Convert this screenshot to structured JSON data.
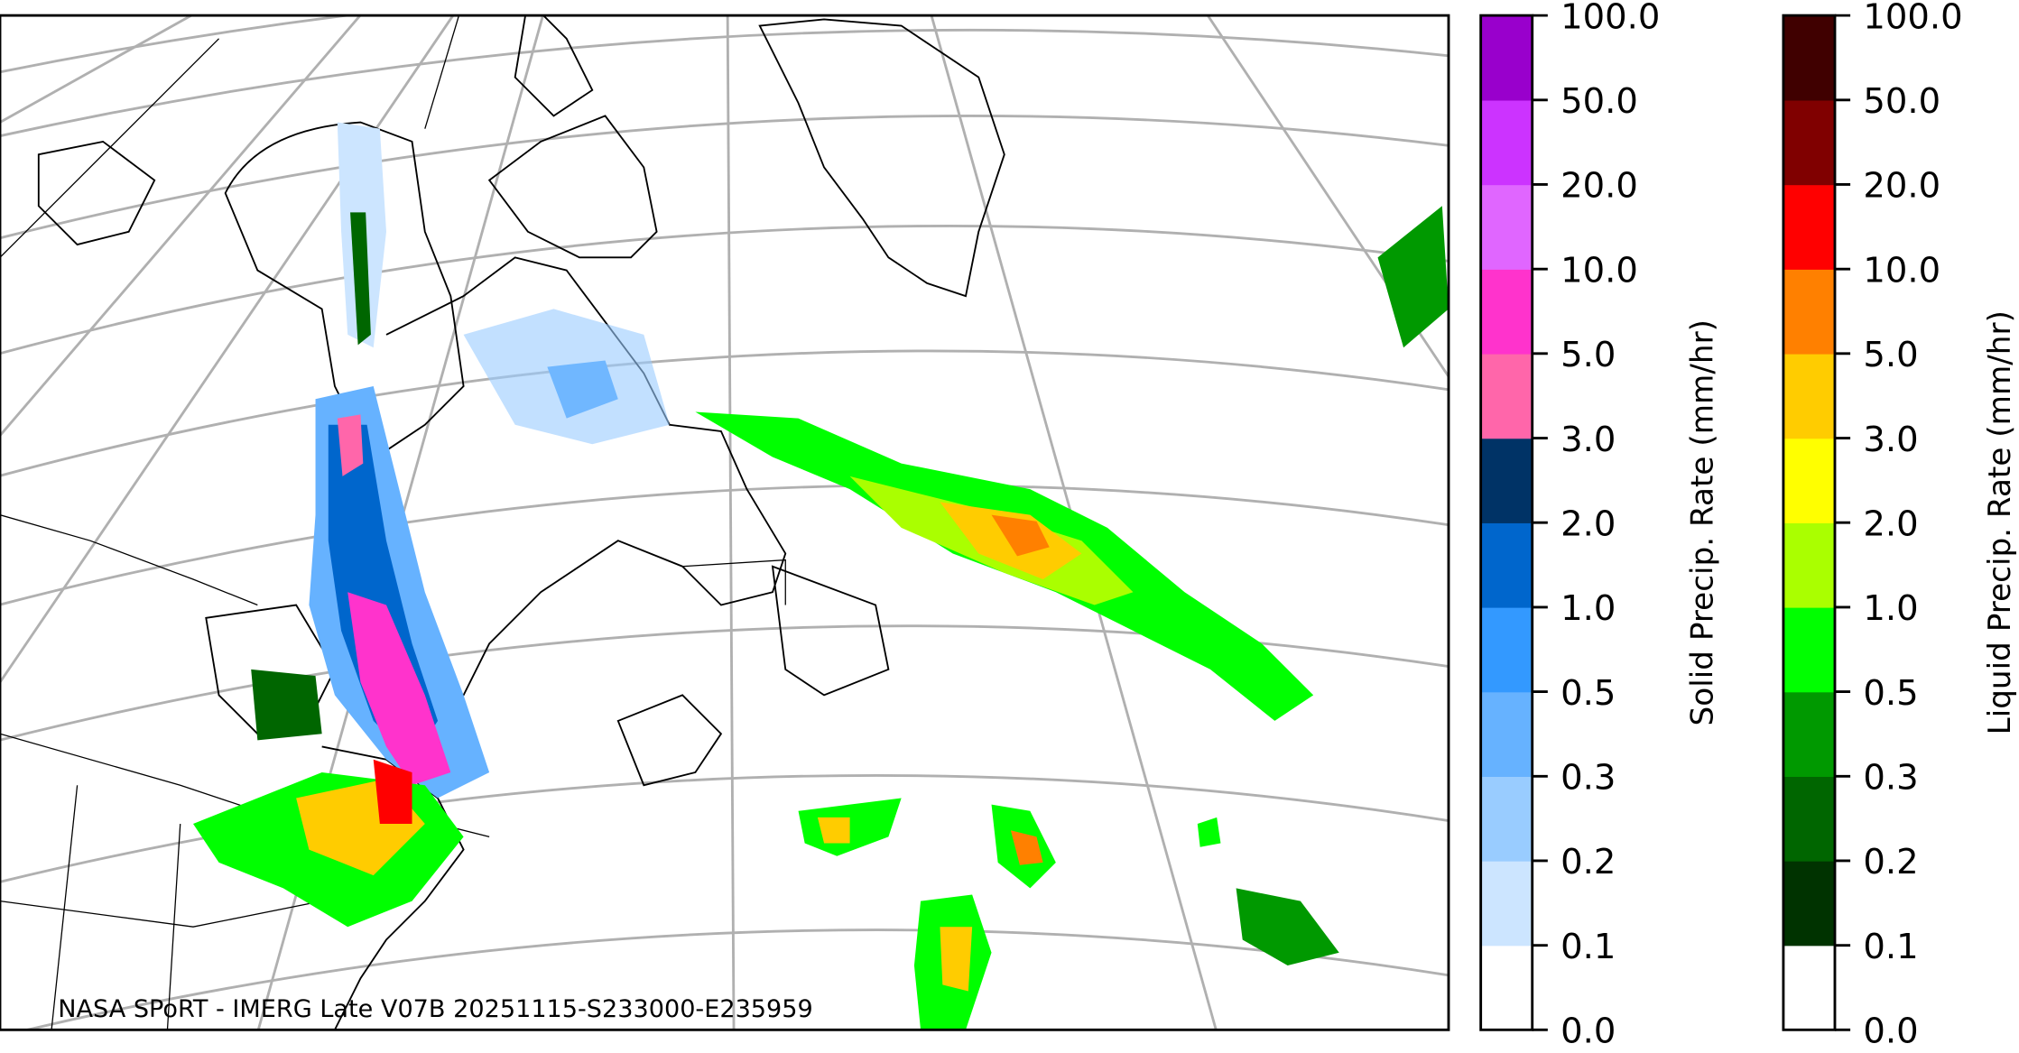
{
  "map": {
    "caption": "NASA SPoRT - IMERG Late V07B 20251115-S233000-E235959",
    "region": "Northeastern North America / North Atlantic",
    "colors": {
      "graticule": "#b0b0b0",
      "coastline": "#000000"
    }
  },
  "legends": [
    {
      "label": "Solid Precip. Rate (mm/hr)",
      "ticks": [
        "0.0",
        "0.1",
        "0.2",
        "0.3",
        "0.5",
        "1.0",
        "2.0",
        "3.0",
        "5.0",
        "10.0",
        "20.0",
        "50.0",
        "100.0"
      ],
      "colors": [
        "#ffffff",
        "#cce5ff",
        "#99ccff",
        "#66b2ff",
        "#3399ff",
        "#0066cc",
        "#003366",
        "#ff66aa",
        "#ff33cc",
        "#e066ff",
        "#cc33ff",
        "#9900cc"
      ]
    },
    {
      "label": "Liquid Precip. Rate (mm/hr)",
      "ticks": [
        "0.0",
        "0.1",
        "0.2",
        "0.3",
        "0.5",
        "1.0",
        "2.0",
        "3.0",
        "5.0",
        "10.0",
        "20.0",
        "50.0",
        "100.0"
      ],
      "colors": [
        "#ffffff",
        "#003300",
        "#006600",
        "#009900",
        "#00ff00",
        "#aaff00",
        "#ffff00",
        "#ffcc00",
        "#ff8000",
        "#ff0000",
        "#800000",
        "#400000"
      ]
    }
  ]
}
